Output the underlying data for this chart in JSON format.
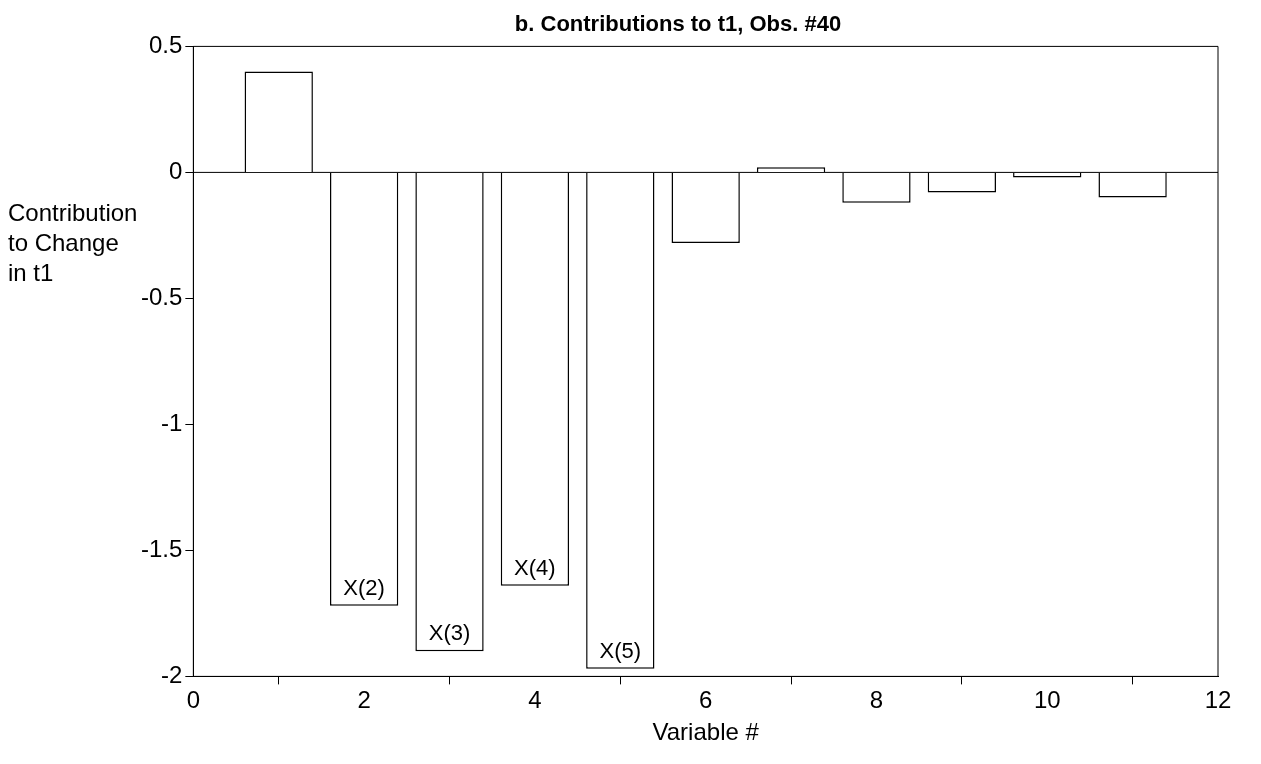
{
  "chart_data": {
    "type": "bar",
    "title": "b. Contributions to t1, Obs. #40",
    "xlabel": "Variable #",
    "ylabel": "Contribution to Change in t1",
    "x": [
      1,
      2,
      3,
      4,
      5,
      6,
      7,
      8,
      9,
      10,
      11
    ],
    "values": [
      0.4,
      -1.72,
      -1.9,
      -1.64,
      -1.97,
      -0.28,
      0.02,
      -0.12,
      -0.08,
      -0.02,
      -0.1
    ],
    "color": "#ffffff",
    "xlim": [
      0,
      12
    ],
    "xticks": [
      0,
      2,
      4,
      6,
      8,
      10,
      12
    ],
    "ylim": [
      -2,
      0.5
    ],
    "yticks": [
      0.5,
      0,
      -0.5,
      -1,
      -1.5,
      -2
    ],
    "ref_lines": [
      {
        "axis": "y",
        "value": 0,
        "color": "#000000"
      }
    ],
    "annotations": [
      {
        "text": "X(2)",
        "x": 2,
        "y": -1.72
      },
      {
        "text": "X(3)",
        "x": 3,
        "y": -1.9
      },
      {
        "text": "X(4)",
        "x": 4,
        "y": -1.64
      },
      {
        "text": "X(5)",
        "x": 5,
        "y": -1.97
      }
    ],
    "grid": false,
    "legend": false
  }
}
